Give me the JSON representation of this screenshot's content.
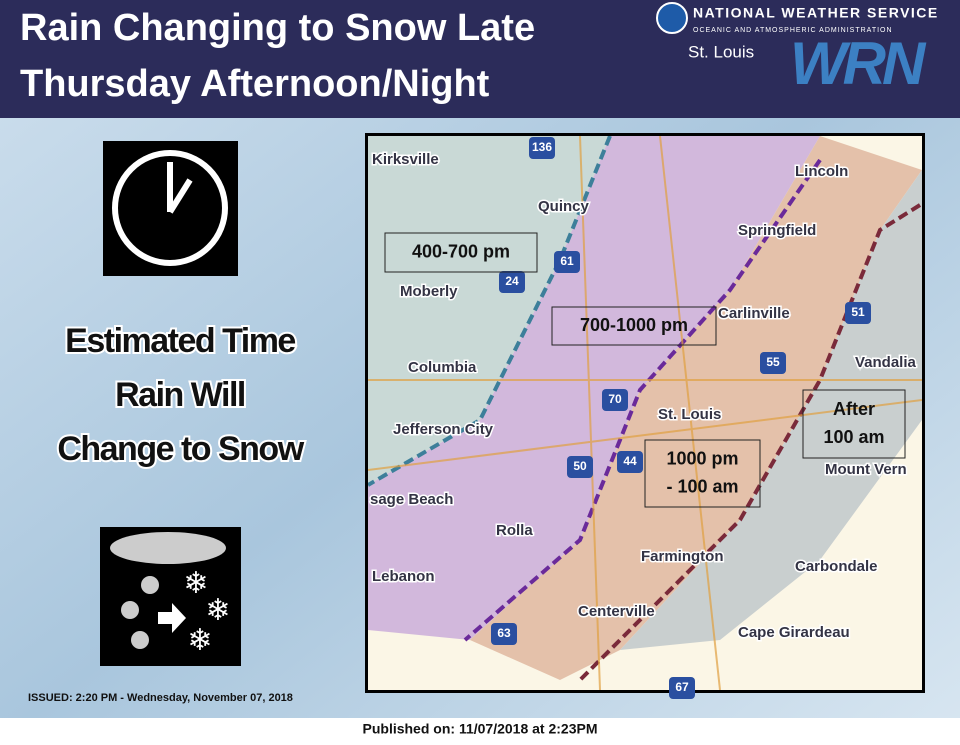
{
  "header": {
    "title_lines": [
      "Rain Changing to Snow Late",
      "Thursday Afternoon/Night"
    ],
    "agency": "NATIONAL WEATHER SERVICE",
    "agency_sub": "OCEANIC AND ATMOSPHERIC ADMINISTRATION",
    "office": "St. Louis",
    "logo_text": "WRN"
  },
  "sidebar": {
    "lines": [
      "Estimated Time",
      "Rain Will",
      "Change to Snow"
    ],
    "issued": "ISSUED: 2:20 PM - Wednesday, November 07, 2018"
  },
  "map": {
    "zones": [
      {
        "lines": [
          "400-700 pm"
        ]
      },
      {
        "lines": [
          "700-1000 pm"
        ]
      },
      {
        "lines": [
          "1000 pm",
          "- 100 am"
        ]
      },
      {
        "lines": [
          "After",
          "100 am"
        ]
      }
    ],
    "cities": [
      "Kirksville",
      "Quincy",
      "Moberly",
      "Columbia",
      "Jefferson City",
      "sage Beach",
      "Rolla",
      "Lebanon",
      "Lincoln",
      "Springfield",
      "Carlinville",
      "Vandalia",
      "St. Louis",
      "Mount Vern",
      "Farmington",
      "Carbondale",
      "Centerville",
      "Cape Girardeau"
    ],
    "highways": [
      "136",
      "61",
      "24",
      "70",
      "50",
      "44",
      "63",
      "55",
      "51",
      "67"
    ]
  },
  "footer": "Published on: 11/07/2018 at 2:23PM"
}
